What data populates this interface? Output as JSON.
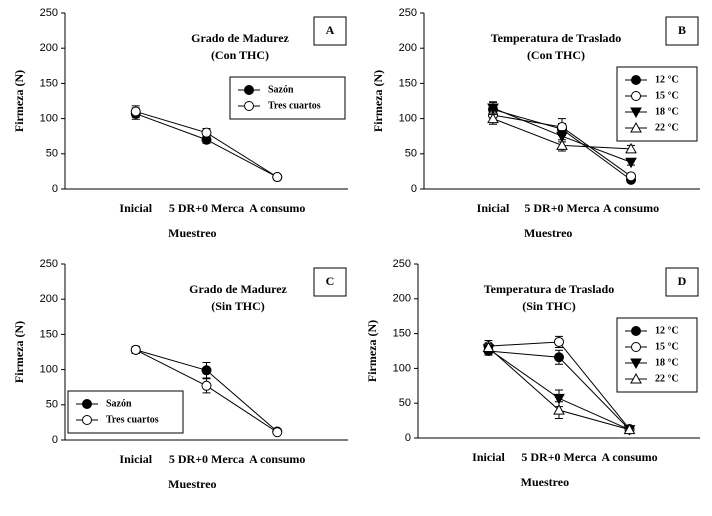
{
  "chart_data": [
    {
      "type": "line",
      "title": "Grado de Madurez",
      "subtitle": "(Con THC)",
      "panel_label": "A",
      "x_label": "Muestreo",
      "y_label": "Firmeza (N)",
      "legend": "right",
      "categories": [
        "Inicial",
        "5 DR+0 Merca",
        "A consumo"
      ],
      "ylim": [
        0,
        250
      ],
      "yticks": [
        0,
        50,
        100,
        150,
        200,
        250
      ],
      "series": [
        {
          "name": "Sazón",
          "color": "#000000",
          "marker": "circle-filled",
          "values": [
            107,
            70,
            17
          ],
          "errors": [
            8,
            5,
            2
          ]
        },
        {
          "name": "Tres cuartos",
          "color": "#000000",
          "marker": "circle-open",
          "values": [
            110,
            80,
            17
          ],
          "errors": [
            8,
            6,
            2
          ]
        }
      ]
    },
    {
      "type": "line",
      "title": "Temperatura de Traslado",
      "subtitle": "(Con THC)",
      "panel_label": "B",
      "x_label": "Muestreo",
      "y_label": "Firmeza (N)",
      "legend": "upper right",
      "categories": [
        "Inicial",
        "5 DR+0 Merca",
        "A consumo"
      ],
      "ylim": [
        0,
        250
      ],
      "yticks": [
        0,
        50,
        100,
        150,
        200,
        250
      ],
      "series": [
        {
          "name": "12 °C",
          "color": "#000000",
          "marker": "circle-filled",
          "values": [
            113,
            85,
            13
          ],
          "errors": [
            10,
            8,
            3
          ]
        },
        {
          "name": "15 °C",
          "color": "#000000",
          "marker": "circle-open",
          "values": [
            105,
            88,
            18
          ],
          "errors": [
            8,
            12,
            3
          ]
        },
        {
          "name": "18 °C",
          "color": "#000000",
          "marker": "triangle-down",
          "values": [
            115,
            75,
            38
          ],
          "errors": [
            9,
            8,
            4
          ]
        },
        {
          "name": "22 °C",
          "color": "#000000",
          "marker": "triangle-up",
          "values": [
            100,
            62,
            57
          ],
          "errors": [
            8,
            8,
            5
          ]
        }
      ]
    },
    {
      "type": "line",
      "title": "Grado de Madurez",
      "subtitle": "(Sin THC)",
      "panel_label": "C",
      "x_label": "Muestreo",
      "y_label": "Firmeza (N)",
      "legend": "lower left",
      "categories": [
        "Inicial",
        "5 DR+0 Merca",
        "A consumo"
      ],
      "ylim": [
        0,
        250
      ],
      "yticks": [
        0,
        50,
        100,
        150,
        200,
        250
      ],
      "series": [
        {
          "name": "Sazón",
          "color": "#000000",
          "marker": "circle-filled",
          "values": [
            128,
            99,
            12
          ],
          "errors": [
            5,
            11,
            2
          ]
        },
        {
          "name": "Tres cuartos",
          "color": "#000000",
          "marker": "circle-open",
          "values": [
            128,
            77,
            11
          ],
          "errors": [
            5,
            10,
            2
          ]
        }
      ]
    },
    {
      "type": "line",
      "title": "Temperatura de Traslado",
      "subtitle": "(Sin THC)",
      "panel_label": "D",
      "x_label": "Muestreo",
      "y_label": "Firmeza (N)",
      "legend": "upper right",
      "categories": [
        "Inicial",
        "5 DR+0 Merca",
        "A consumo"
      ],
      "ylim": [
        0,
        250
      ],
      "yticks": [
        0,
        50,
        100,
        150,
        200,
        250
      ],
      "series": [
        {
          "name": "12 °C",
          "color": "#000000",
          "marker": "circle-filled",
          "values": [
            125,
            116,
            12
          ],
          "errors": [
            6,
            10,
            2
          ]
        },
        {
          "name": "15 °C",
          "color": "#000000",
          "marker": "circle-open",
          "values": [
            132,
            138,
            13
          ],
          "errors": [
            8,
            8,
            2
          ]
        },
        {
          "name": "18 °C",
          "color": "#000000",
          "marker": "triangle-down",
          "values": [
            128,
            57,
            12
          ],
          "errors": [
            6,
            12,
            2
          ]
        },
        {
          "name": "22 °C",
          "color": "#000000",
          "marker": "triangle-up",
          "values": [
            130,
            40,
            12
          ],
          "errors": [
            6,
            12,
            2
          ]
        }
      ]
    }
  ]
}
